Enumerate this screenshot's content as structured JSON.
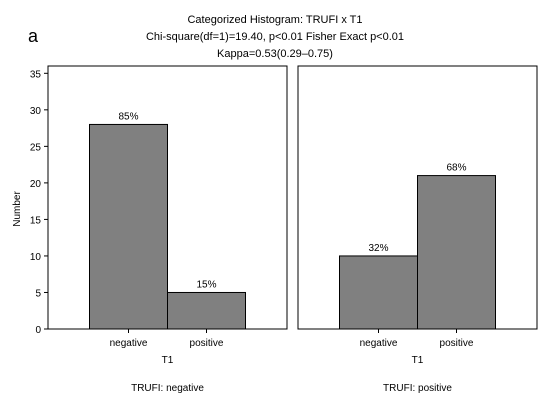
{
  "chart_data": {
    "type": "bar",
    "panel_letter": "a",
    "title_lines": [
      "Categorized Histogram: TRUFI x T1",
      "Chi-square(df=1)=19.40, p<0.01 Fisher Exact p<0.01",
      "Kappa=0.53(0.29–0.75)"
    ],
    "ylabel": "Number",
    "ylim": [
      0,
      36
    ],
    "yticks": [
      0,
      5,
      10,
      15,
      20,
      25,
      30,
      35
    ],
    "grid": false,
    "bar_color": "#808080",
    "panels": [
      {
        "name": "TRUFI: negative",
        "xlabel": "T1",
        "categories": [
          "negative",
          "positive"
        ],
        "values": [
          28,
          5
        ],
        "labels": [
          "85%",
          "15%"
        ]
      },
      {
        "name": "TRUFI: positive",
        "xlabel": "T1",
        "categories": [
          "negative",
          "positive"
        ],
        "values": [
          10,
          21
        ],
        "labels": [
          "32%",
          "68%"
        ]
      }
    ]
  }
}
